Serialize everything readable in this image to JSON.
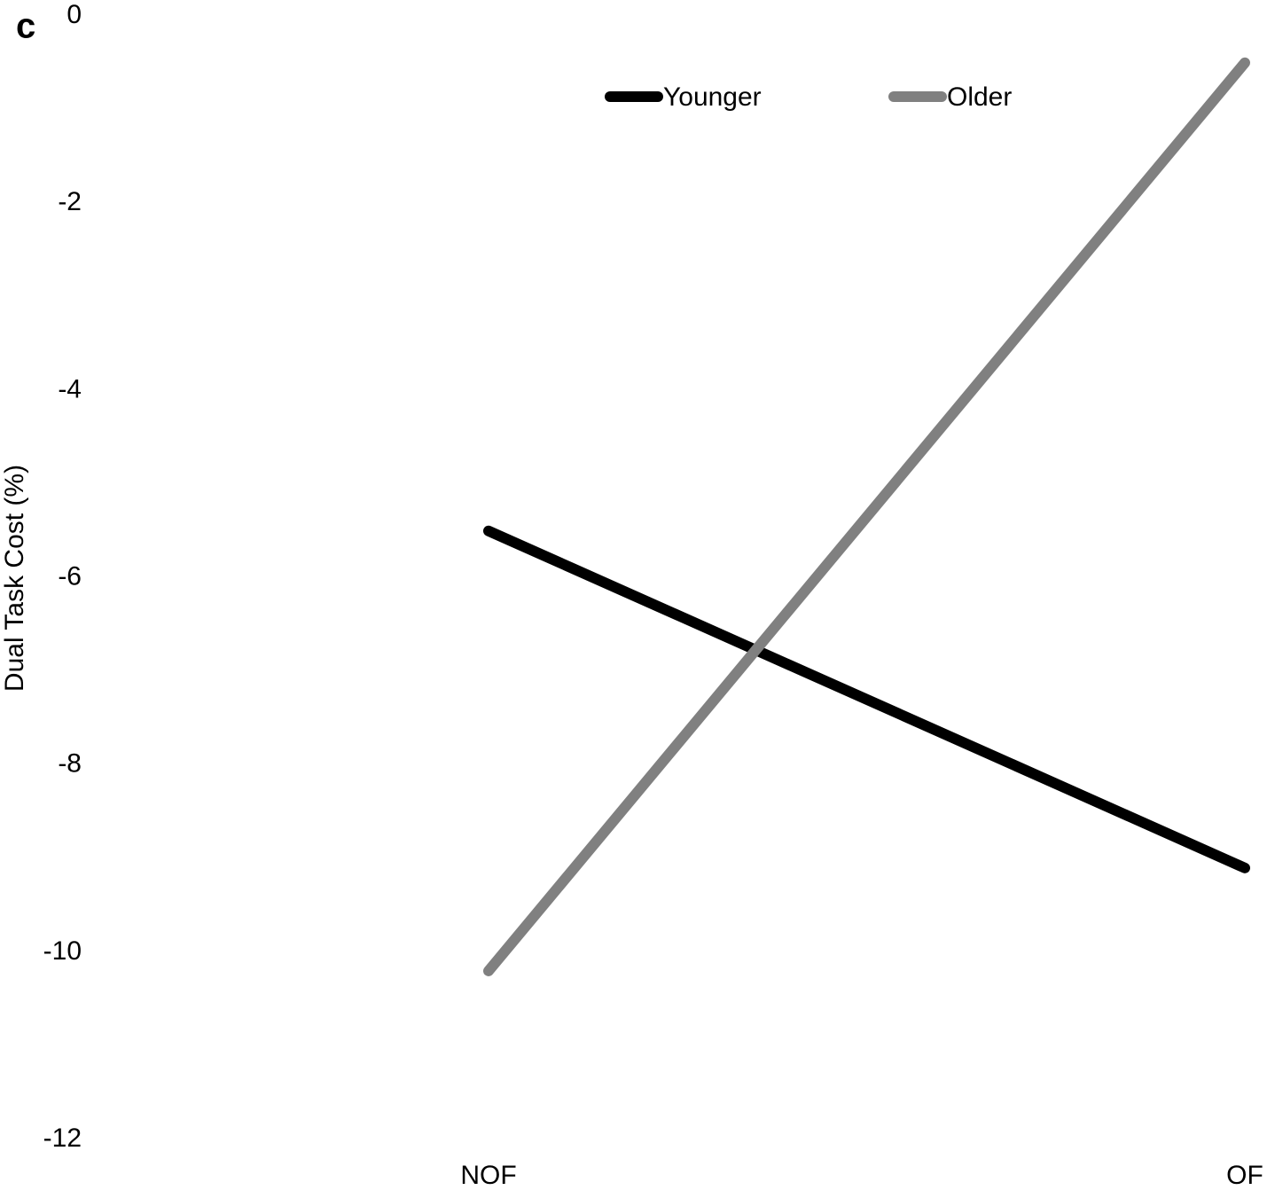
{
  "chart_data": {
    "type": "line",
    "panel_label": "c",
    "y_label": "Dual Task Cost (%)",
    "categories": [
      "NOF",
      "OF"
    ],
    "series": [
      {
        "name": "Younger",
        "color": "#000000",
        "values": [
          -5.5,
          -9.1
        ]
      },
      {
        "name": "Older",
        "color": "#808080",
        "values": [
          -10.2,
          -0.5
        ]
      }
    ],
    "ylim": [
      -12,
      0
    ],
    "yticks": [
      0,
      -2,
      -4,
      -6,
      -8,
      -10,
      -12
    ],
    "grid": false,
    "legend": "top"
  }
}
